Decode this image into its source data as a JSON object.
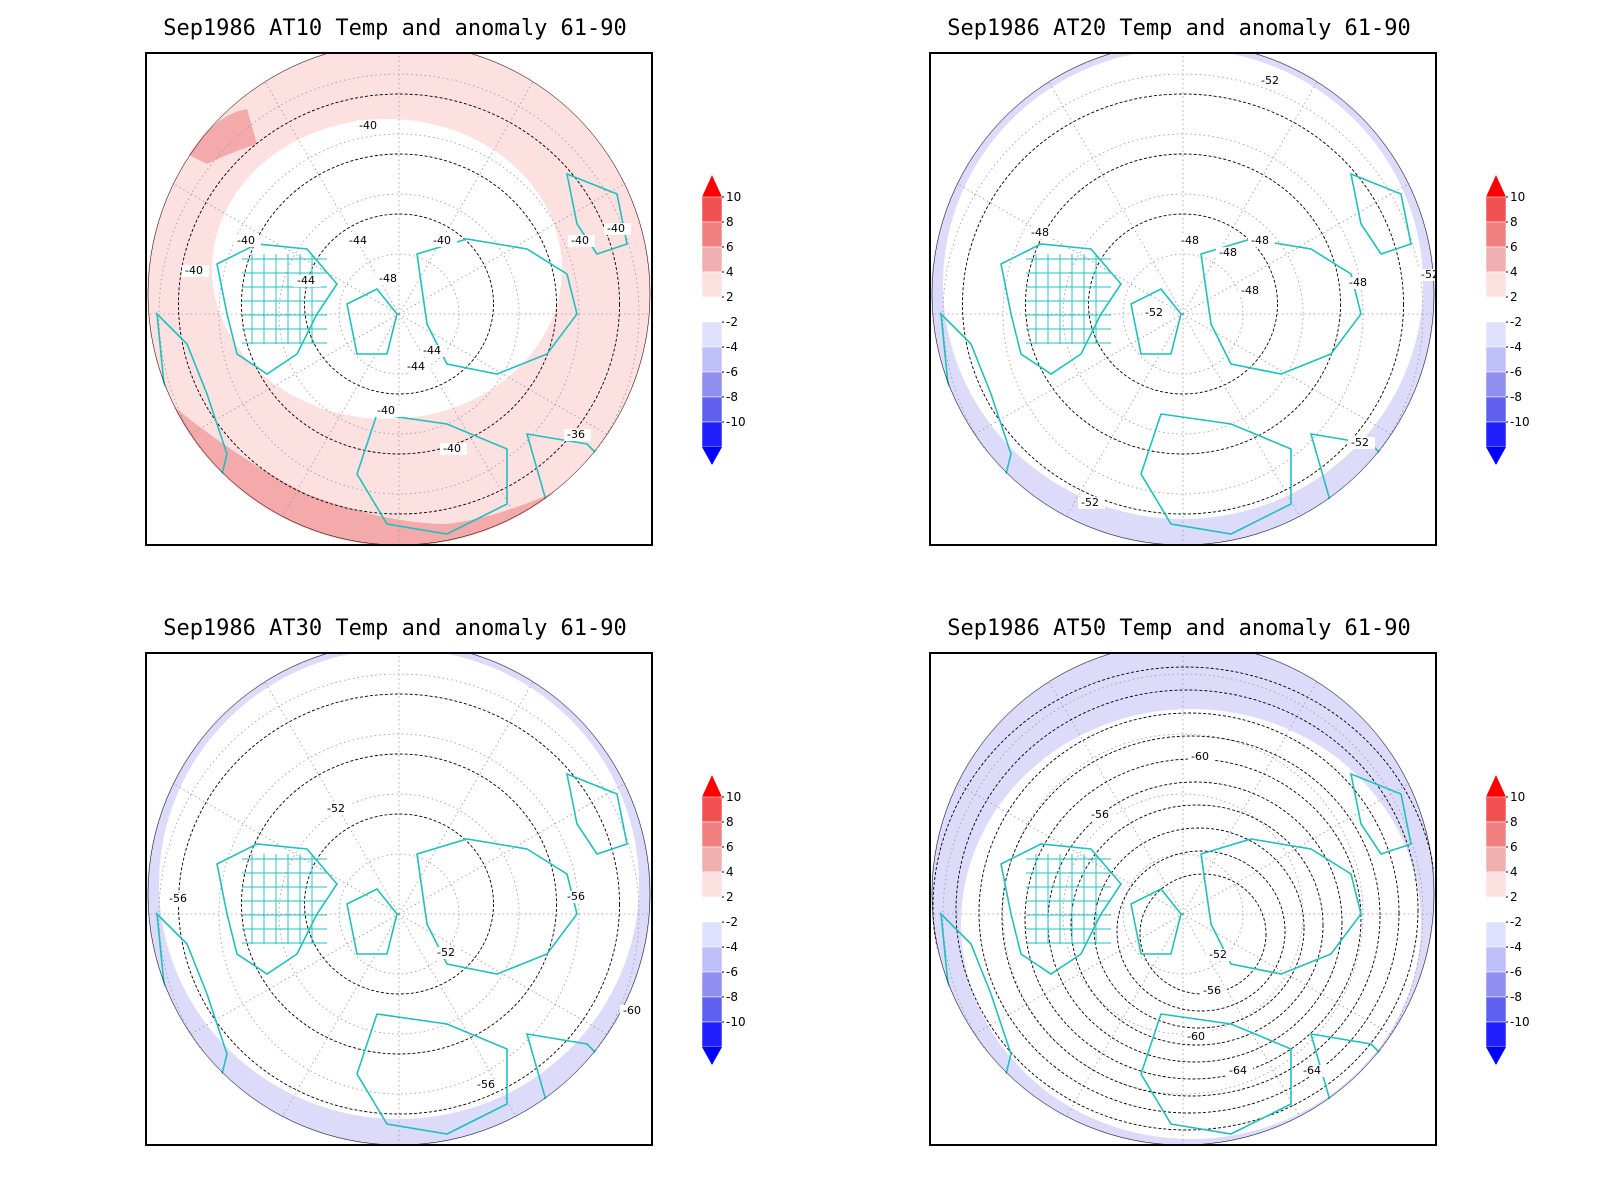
{
  "panels": [
    {
      "title": "Sep1986 AT10 Temp and anomaly 61-90",
      "contour_labels": [
        "-40",
        "-40",
        "-40",
        "-40",
        "-40",
        "-44",
        "-44",
        "-48",
        "-44",
        "-44",
        "-40",
        "-40",
        "-36",
        "-40"
      ],
      "anomaly": "warm"
    },
    {
      "title": "Sep1986 AT20 Temp and anomaly 61-90",
      "contour_labels": [
        "-52",
        "-48",
        "-48",
        "-48",
        "-48",
        "-48",
        "-52",
        "-48",
        "-52",
        "-52",
        "-52"
      ],
      "anomaly": "cool-light"
    },
    {
      "title": "Sep1986 AT30 Temp and anomaly 61-90",
      "contour_labels": [
        "-52",
        "-56",
        "-56",
        "-52",
        "-60",
        "-56"
      ],
      "anomaly": "cool-light"
    },
    {
      "title": "Sep1986 AT50 Temp and anomaly 61-90",
      "contour_labels": [
        "-60",
        "-56",
        "-52",
        "-56",
        "-60",
        "-64",
        "-64"
      ],
      "anomaly": "cool"
    }
  ],
  "colorbar": {
    "labels": [
      "10",
      "8",
      "6",
      "4",
      "2",
      "-2",
      "-4",
      "-6",
      "-8",
      "-10"
    ],
    "colors": [
      "#ff0000",
      "#f05050",
      "#f08080",
      "#f0b0b0",
      "#fde0e0",
      "#ffffff",
      "#e0e0ff",
      "#c0c0f8",
      "#9090f0",
      "#6060f0",
      "#2020ff",
      "#0000ff"
    ]
  },
  "colors": {
    "coast": "#20c0c0",
    "warm_light": "#fde0e0",
    "warm_mid": "#f4aaaa",
    "cool_light": "#dcdcfa",
    "contour": "#000000"
  }
}
